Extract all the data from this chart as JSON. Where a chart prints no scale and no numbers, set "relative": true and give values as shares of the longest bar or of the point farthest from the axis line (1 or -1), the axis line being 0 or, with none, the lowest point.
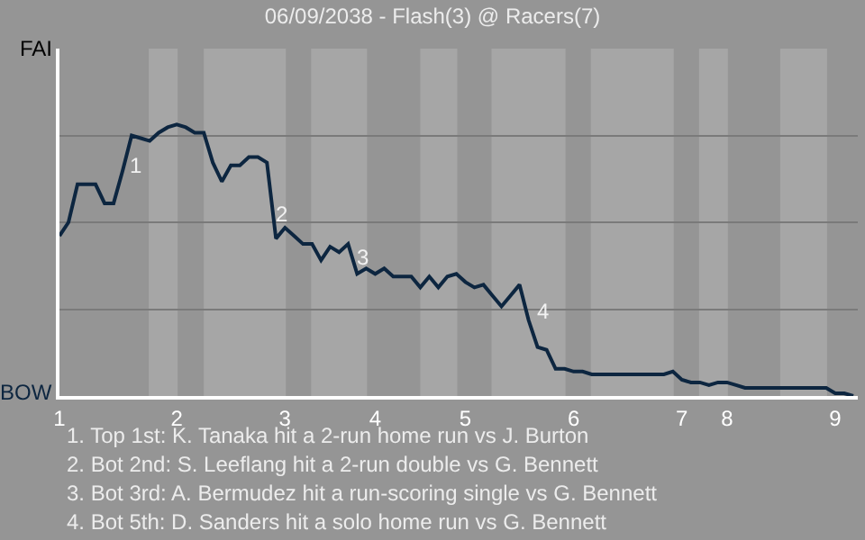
{
  "chart_data": {
    "type": "line",
    "title": "06/09/2038 - Flash(3) @ Racers(7)",
    "relative": true,
    "categories": [
      "1",
      null,
      null,
      null,
      null,
      null,
      null,
      null,
      null,
      null,
      null,
      null,
      null,
      "2",
      null,
      null,
      null,
      null,
      null,
      null,
      null,
      null,
      null,
      null,
      null,
      "3",
      null,
      null,
      null,
      null,
      null,
      null,
      null,
      null,
      null,
      "4",
      null,
      null,
      null,
      null,
      null,
      null,
      null,
      null,
      null,
      "5",
      null,
      null,
      null,
      null,
      null,
      null,
      null,
      null,
      null,
      null,
      null,
      "6",
      null,
      null,
      null,
      null,
      null,
      null,
      null,
      null,
      null,
      null,
      null,
      "7",
      null,
      null,
      null,
      null,
      "8",
      null,
      null,
      null,
      null,
      null,
      null,
      null,
      null,
      null,
      null,
      null,
      "9",
      null,
      null
    ],
    "series": [
      {
        "color": "#0d2640",
        "values": [
          0.59,
          0.64,
          0.78,
          0.78,
          0.78,
          0.71,
          0.71,
          0.83,
          0.96,
          0.95,
          0.94,
          0.97,
          0.99,
          1,
          0.99,
          0.97,
          0.97,
          0.86,
          0.79,
          0.85,
          0.85,
          0.88,
          0.88,
          0.86,
          0.58,
          0.62,
          0.59,
          0.56,
          0.56,
          0.5,
          0.55,
          0.53,
          0.56,
          0.45,
          0.47,
          0.45,
          0.47,
          0.44,
          0.44,
          0.44,
          0.4,
          0.44,
          0.4,
          0.44,
          0.45,
          0.42,
          0.4,
          0.41,
          0.37,
          0.33,
          0.37,
          0.41,
          0.28,
          0.18,
          0.17,
          0.1,
          0.1,
          0.09,
          0.09,
          0.08,
          0.08,
          0.08,
          0.08,
          0.08,
          0.08,
          0.08,
          0.08,
          0.08,
          0.09,
          0.06,
          0.05,
          0.05,
          0.04,
          0.05,
          0.05,
          0.04,
          0.03,
          0.03,
          0.03,
          0.03,
          0.03,
          0.03,
          0.03,
          0.03,
          0.03,
          0.03,
          0.01,
          0.01,
          0
        ]
      }
    ],
    "grid": "y",
    "marker": "none",
    "line_style": "solid",
    "annotations": [
      "FAI",
      "BOW",
      "1",
      "2",
      "3",
      "4",
      "1. Top 1st: K. Tanaka hit a 2-run home run vs J. Burton",
      "2. Bot 2nd: S. Leeflang hit a 2-run double vs G. Bennett",
      "3. Bot 3rd: A. Bermudez hit a run-scoring single vs G. Bennett",
      "4. Bot 5th: D. Sanders hit a solo home run vs G. Bennett"
    ]
  }
}
